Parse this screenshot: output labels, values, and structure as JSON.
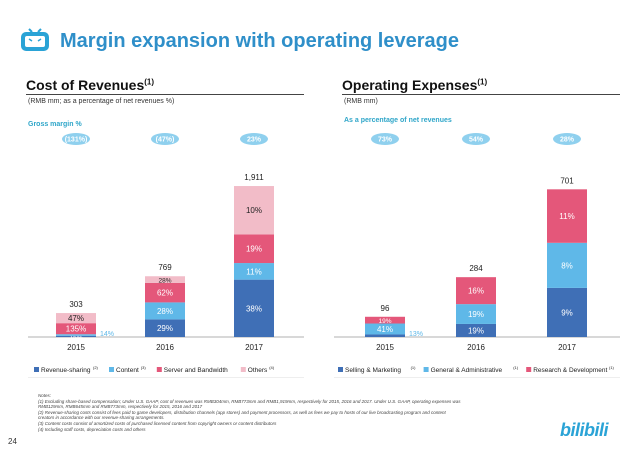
{
  "title": "Margin expansion with operating leverage",
  "page_number": "24",
  "brand": "bilibili",
  "colors": {
    "dark_blue": "#3f6fb6",
    "light_blue": "#5fb8e8",
    "red": "#e4577a",
    "pink": "#f2bcc8",
    "accent": "#2f8fc9",
    "bubble": "#8fd0ee"
  },
  "left_section": {
    "title": "Cost of Revenues",
    "title_sup": "(1)",
    "subtitle": "(RMB mm; as a percentage of net revenues %)",
    "indicator_label": "Gross  margin  %"
  },
  "right_section": {
    "title": "Operating Expenses",
    "title_sup": "(1)",
    "subtitle": "(RMB mm)",
    "indicator_label": "As a percentage of net revenues"
  },
  "chart_data": [
    {
      "type": "bar",
      "stacked": true,
      "title": "Cost of Revenues",
      "categories": [
        "2015",
        "2016",
        "2017"
      ],
      "totals": [
        303,
        769,
        1911
      ],
      "total_labels": [
        "303",
        "769",
        "1,911"
      ],
      "top_bubbles": [
        "(131%)",
        "(47%)",
        "23%"
      ],
      "series": [
        {
          "name": "Revenue-sharing",
          "legend_sup": "(2)",
          "color": "#3f6fb6",
          "values": [
            15,
            223,
            726
          ],
          "labels": [
            "15%",
            "29%",
            "38%"
          ]
        },
        {
          "name": "Content",
          "legend_sup": "(3)",
          "color": "#5fb8e8",
          "values": [
            20,
            215,
            210
          ],
          "labels": [
            "",
            "28%",
            "11%"
          ]
        },
        {
          "name": "Server and Bandwidth",
          "legend_sup": "",
          "color": "#e4577a",
          "values": [
            140,
            246,
            363
          ],
          "labels": [
            "135%",
            "62%",
            "19%"
          ]
        },
        {
          "name": "Others",
          "legend_sup": "(4)",
          "color": "#f2bcc8",
          "values": [
            128,
            85,
            612
          ],
          "labels": [
            "47%",
            "28%",
            "10%"
          ]
        }
      ],
      "side_labels": [
        {
          "category": "2015",
          "text": "14%"
        }
      ],
      "ylim": [
        0,
        2000
      ]
    },
    {
      "type": "bar",
      "stacked": true,
      "title": "Operating Expenses",
      "categories": [
        "2015",
        "2016",
        "2017"
      ],
      "totals": [
        96,
        284,
        701
      ],
      "total_labels": [
        "96",
        "284",
        "701"
      ],
      "top_bubbles": [
        "73%",
        "54%",
        "28%"
      ],
      "series": [
        {
          "name": "Selling & Marketing",
          "legend_sup": "(1)",
          "color": "#3f6fb6",
          "values": [
            12,
            62,
            233
          ],
          "labels": [
            "",
            "19%",
            "9%"
          ]
        },
        {
          "name": "General & Administrative",
          "legend_sup": "(1)",
          "color": "#5fb8e8",
          "values": [
            52,
            94,
            214
          ],
          "labels": [
            "41%",
            "19%",
            "8%"
          ]
        },
        {
          "name": "Research & Development",
          "legend_sup": "(1)",
          "color": "#e4577a",
          "values": [
            32,
            128,
            254
          ],
          "labels": [
            "19%",
            "16%",
            "11%"
          ]
        }
      ],
      "side_labels": [
        {
          "category": "2015",
          "text": "13%"
        }
      ],
      "ylim": [
        0,
        750
      ]
    }
  ],
  "notes": [
    "Notes:",
    "(1)    Excluding share-based compensation; Under U.S. GAAP, cost of revenues was RMB304mm, RMB773mm and RMB1,919mm, respectively for 2015, 2016 and 2017. Under U.S. GAAP, operating expenses was",
    "         RMB129mm, RMB645mm and RMB773mm, respectively for 2015, 2016 and 2017",
    "(2)    Revenue-sharing costs consist of fees paid to game developers, distribution channels (app stores) and payment processors, as well as fees we pay to hosts of our live broadcasting program and content",
    "         creators in accordance with our revenue-sharing  arrangements.",
    "(3)    Content costs consist of amortized costs of purchased licensed content from copyright owners or content distributors",
    "(4)    Including staff costs, depreciation costs and others"
  ]
}
